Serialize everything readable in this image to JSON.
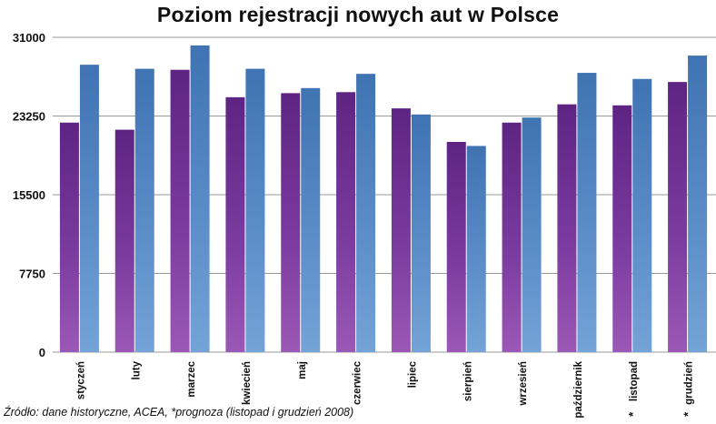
{
  "chart_data": {
    "type": "bar",
    "title": "Poziom rejestracji nowych aut w Polsce",
    "xlabel": "",
    "ylabel": "",
    "categories": [
      "styczeń",
      "luty",
      "marzec",
      "kwiecień",
      "maj",
      "czerwiec",
      "lipiec",
      "sierpień",
      "wrzesień",
      "październik",
      "listopad",
      "grudzień"
    ],
    "category_marks": [
      "",
      "",
      "",
      "",
      "",
      "",
      "",
      "",
      "",
      "",
      "*",
      "*"
    ],
    "series": [
      {
        "values": [
          22600,
          21900,
          27800,
          25100,
          25500,
          25600,
          24000,
          20700,
          22600,
          24400,
          24300,
          26600
        ],
        "color": "#6a2c8e"
      },
      {
        "values": [
          28300,
          27900,
          30200,
          27900,
          26000,
          27400,
          23400,
          20300,
          23100,
          27500,
          26900,
          29200
        ],
        "color": "#4a7fbd"
      }
    ],
    "yticks": [
      0,
      7750,
      15500,
      23250,
      31000
    ],
    "ylim": [
      0,
      31000
    ],
    "grid": true,
    "legend": "none"
  },
  "source_note": "Źródło: dane historyczne, ACEA, *prognoza (listopad i grudzień 2008)"
}
